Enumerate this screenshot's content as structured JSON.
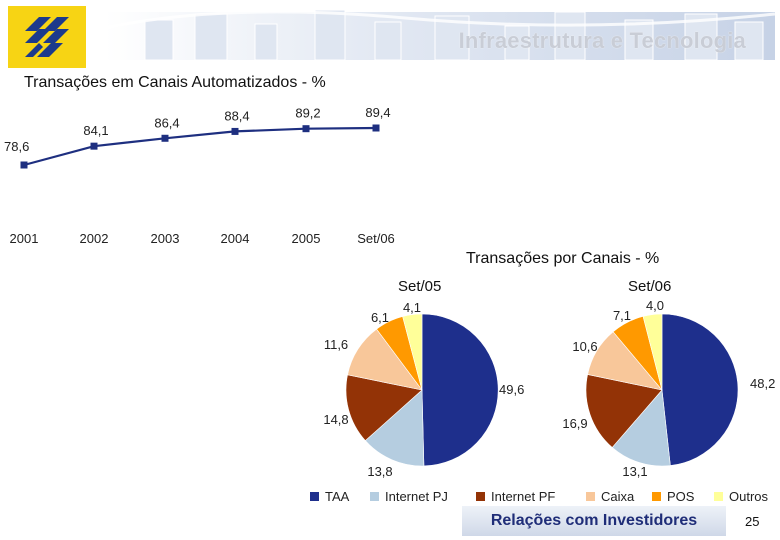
{
  "header": {
    "title": "Infraestrutura e Tecnologia"
  },
  "footer": {
    "label": "Relações com Investidores",
    "page_number": "25"
  },
  "colors": {
    "brand_yellow": "#f7d414",
    "brand_blue": "#1c3a8c",
    "line_series": "#1e2f80",
    "TAA": "#1e2f8c",
    "Internet PJ": "#b5cde0",
    "Internet PF": "#933306",
    "Caixa": "#f8c79a",
    "POS": "#ff9900",
    "Outros": "#ffff99"
  },
  "chart_data": [
    {
      "type": "line",
      "title": "Transações em Canais Automatizados - %",
      "categories": [
        "2001",
        "2002",
        "2003",
        "2004",
        "2005",
        "Set/06"
      ],
      "values": [
        78.6,
        84.1,
        86.4,
        88.4,
        89.2,
        89.4
      ],
      "value_labels": [
        "78,6",
        "84,1",
        "86,4",
        "88,4",
        "89,2",
        "89,4"
      ],
      "grid": false,
      "y_axis": "hidden"
    },
    {
      "type": "pie",
      "section_title": "Transações por Canais - %",
      "title": "Set/05",
      "categories": [
        "TAA",
        "Internet PJ",
        "Internet PF",
        "Caixa",
        "POS",
        "Outros"
      ],
      "values": [
        49.6,
        13.8,
        14.8,
        11.6,
        6.1,
        4.1
      ],
      "value_labels": [
        "49,6",
        "13,8",
        "14,8",
        "11,6",
        "6,1",
        "4,1"
      ],
      "legend_position": "bottom"
    },
    {
      "type": "pie",
      "title": "Set/06",
      "categories": [
        "TAA",
        "Internet PJ",
        "Internet PF",
        "Caixa",
        "POS",
        "Outros"
      ],
      "values": [
        48.2,
        13.1,
        16.9,
        10.6,
        7.1,
        4.0
      ],
      "value_labels": [
        "48,2",
        "13,1",
        "16,9",
        "10,6",
        "7,1",
        "4,0"
      ],
      "legend_position": "bottom"
    }
  ]
}
